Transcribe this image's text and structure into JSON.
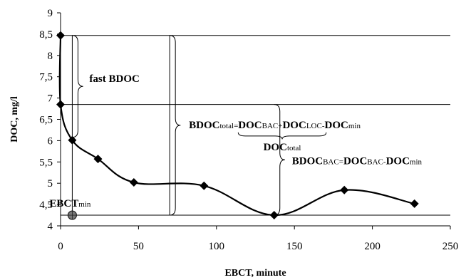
{
  "chart_data": {
    "type": "line",
    "xlabel": "EBCT, minute",
    "ylabel": "DOC, mg/l",
    "xlim": [
      0,
      250
    ],
    "ylim": [
      4,
      9
    ],
    "x_ticks": [
      "0",
      "50",
      "100",
      "150",
      "200",
      "250"
    ],
    "y_ticks": [
      "4",
      "4,5",
      "5",
      "5,5",
      "6",
      "6,5",
      "7",
      "7,5",
      "8",
      "8,5",
      "9"
    ],
    "grid": false,
    "series": [
      {
        "x": [
          0,
          0,
          7.5,
          24,
          47,
          92,
          137,
          182,
          227
        ],
        "y": [
          8.47,
          6.85,
          6.01,
          5.57,
          5.02,
          4.94,
          4.25,
          4.84,
          4.52
        ]
      }
    ],
    "reference_lines": {
      "horizontal_y": [
        8.47,
        6.85,
        4.25
      ],
      "vertical_x": [
        7.5,
        70
      ]
    },
    "ebct_min_marker": {
      "x": 7.5,
      "y": 4.25
    },
    "annotations": {
      "fast_bdoc": "fast  BDOC",
      "bdoc_total": {
        "lhs": "BDOC",
        "lhs_sub": "total",
        "eq": "=",
        "t1": "DOC",
        "t1_sub": "BAC",
        "op1": "+",
        "t2": "DOC",
        "t2_sub": "LOC",
        "op2": "-",
        "t3": "DOC",
        "t3_sub": "min"
      },
      "doc_total": {
        "main": "DOC",
        "sub": "total"
      },
      "bdoc_bac": {
        "lhs": "BDOC",
        "lhs_sub": "BAC",
        "eq": "=",
        "t1": "DOC",
        "t1_sub": "BAC",
        "op1": "-",
        "t2": "DOC",
        "t2_sub": "min"
      },
      "ebct_min": {
        "main": "EBCT",
        "sub": "min"
      }
    }
  }
}
